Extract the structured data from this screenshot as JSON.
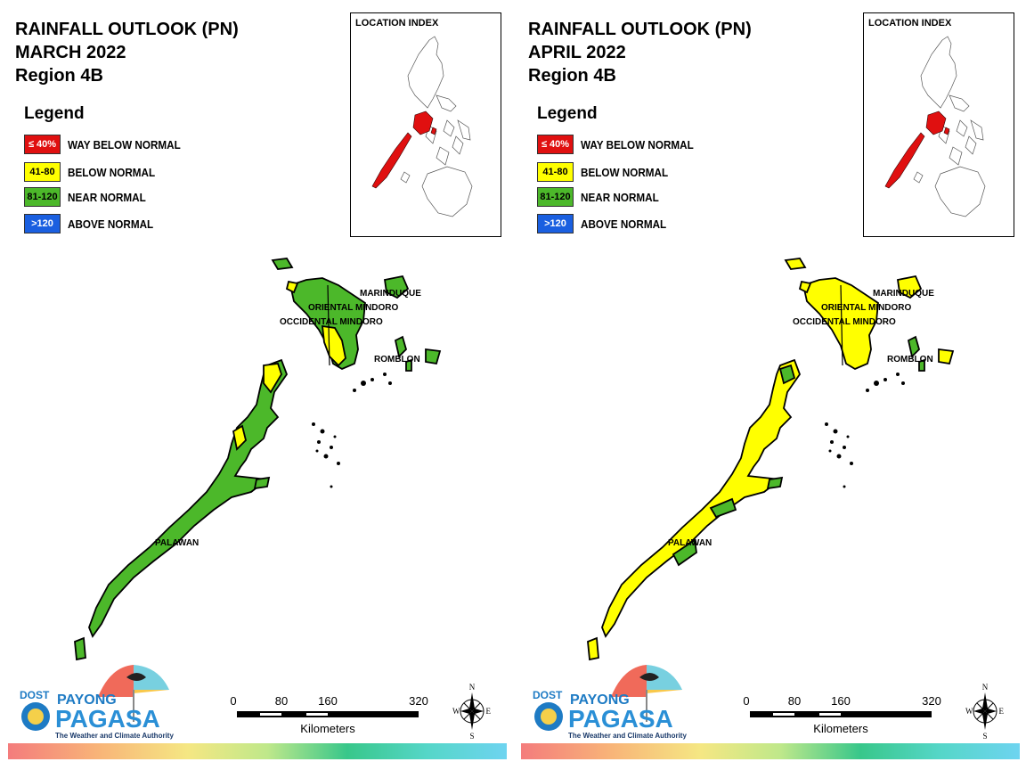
{
  "panels": [
    {
      "title_line1": "RAINFALL OUTLOOK (PN)",
      "title_line2": "MARCH 2022",
      "title_line3": "Region 4B",
      "legend_title": "Legend",
      "legend": [
        {
          "box": "≤ 40%",
          "label": "WAY BELOW NORMAL",
          "color": "#e01010"
        },
        {
          "box": "41-80",
          "label": "BELOW NORMAL",
          "color": "#ffff00"
        },
        {
          "box": "81-120",
          "label": "NEAR NORMAL",
          "color": "#4cb82a"
        },
        {
          "box": ">120",
          "label": "ABOVE NORMAL",
          "color": "#1a5fe0"
        }
      ],
      "inset_title": "LOCATION INDEX",
      "map_labels": {
        "marinduque": "MARINDUQUE",
        "oriental": "ORIENTAL MINDORO",
        "occidental": "OCCIDENTAL MINDORO",
        "romblon": "ROMBLON",
        "palawan": "PALAWAN"
      },
      "province_outlook": {
        "palawan": "NEAR NORMAL",
        "mindoro": "NEAR NORMAL",
        "marinduque": "NEAR NORMAL",
        "romblon": "NEAR NORMAL"
      },
      "scale": {
        "ticks": [
          "0",
          "80",
          "160",
          "320"
        ],
        "unit": "Kilometers"
      },
      "logo": {
        "dost": "DOST",
        "payong": "PAYONG",
        "pagasa": "PAGASA",
        "tagline": "The Weather and Climate Authority"
      },
      "compass": {
        "n": "N",
        "s": "S",
        "e": "E",
        "w": "W"
      }
    },
    {
      "title_line1": "RAINFALL OUTLOOK (PN)",
      "title_line2": "APRIL 2022",
      "title_line3": "Region 4B",
      "legend_title": "Legend",
      "legend": [
        {
          "box": "≤ 40%",
          "label": "WAY BELOW NORMAL",
          "color": "#e01010"
        },
        {
          "box": "41-80",
          "label": "BELOW NORMAL",
          "color": "#ffff00"
        },
        {
          "box": "81-120",
          "label": "NEAR NORMAL",
          "color": "#4cb82a"
        },
        {
          "box": ">120",
          "label": "ABOVE NORMAL",
          "color": "#1a5fe0"
        }
      ],
      "inset_title": "LOCATION INDEX",
      "map_labels": {
        "marinduque": "MARINDUQUE",
        "oriental": "ORIENTAL MINDORO",
        "occidental": "OCCIDENTAL MINDORO",
        "romblon": "ROMBLON",
        "palawan": "PALAWAN"
      },
      "province_outlook": {
        "palawan": "BELOW NORMAL",
        "mindoro": "BELOW NORMAL",
        "marinduque": "BELOW NORMAL",
        "romblon": "BELOW NORMAL"
      },
      "scale": {
        "ticks": [
          "0",
          "80",
          "160",
          "320"
        ],
        "unit": "Kilometers"
      },
      "logo": {
        "dost": "DOST",
        "payong": "PAYONG",
        "pagasa": "PAGASA",
        "tagline": "The Weather and Climate Authority"
      },
      "compass": {
        "n": "N",
        "s": "S",
        "e": "E",
        "w": "W"
      }
    }
  ],
  "colors": {
    "near_normal": "#4cb82a",
    "below_normal": "#ffff00",
    "way_below": "#e01010",
    "above": "#1a5fe0"
  }
}
